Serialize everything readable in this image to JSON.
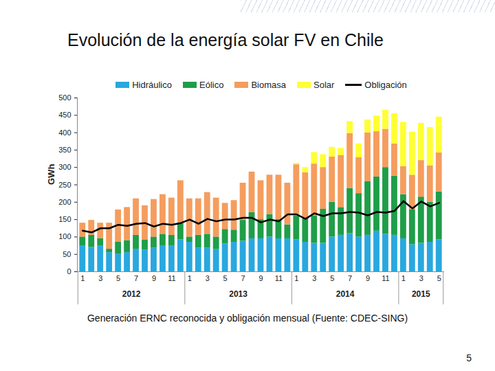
{
  "chart_data": {
    "type": "bar",
    "title": "Evolución de la energía solar FV en Chile",
    "y_label": "GWh",
    "caption": "Generación ERNC reconocida y obligación mensual (Fuente: CDEC-SING)",
    "categories": [
      "1",
      null,
      "3",
      null,
      "5",
      null,
      "7",
      null,
      "9",
      null,
      "11",
      null,
      "1",
      null,
      "3",
      null,
      "5",
      null,
      "7",
      null,
      "9",
      null,
      "11",
      null,
      "1",
      null,
      "3",
      null,
      "5",
      null,
      "7",
      null,
      "9",
      null,
      "11",
      null,
      "1",
      null,
      "3",
      null,
      "5"
    ],
    "year_groups": [
      {
        "label": "2012",
        "months": 12
      },
      {
        "label": "2013",
        "months": 12
      },
      {
        "label": "2014",
        "months": 12
      },
      {
        "label": "2015",
        "months": 5
      }
    ],
    "series": [
      {
        "name": "Hidráulico",
        "type": "bar",
        "color": "#29a8df",
        "values": [
          75,
          70,
          75,
          55,
          50,
          55,
          65,
          62,
          68,
          75,
          75,
          92,
          85,
          68,
          68,
          65,
          80,
          85,
          88,
          95,
          95,
          100,
          95,
          95,
          92,
          85,
          82,
          82,
          100,
          105,
          110,
          100,
          105,
          117,
          108,
          105,
          95,
          78,
          82,
          85,
          92
        ]
      },
      {
        "name": "Eólico",
        "type": "bar",
        "color": "#1f9e48",
        "values": [
          25,
          35,
          20,
          10,
          35,
          35,
          40,
          30,
          32,
          33,
          30,
          48,
          15,
          37,
          40,
          35,
          42,
          35,
          60,
          75,
          55,
          65,
          55,
          40,
          68,
          70,
          78,
          98,
          100,
          80,
          130,
          125,
          155,
          156,
          192,
          170,
          127,
          100,
          133,
          115,
          138
        ]
      },
      {
        "name": "Biomasa",
        "type": "bar",
        "color": "#f59d5e",
        "values": [
          40,
          43,
          45,
          75,
          93,
          95,
          105,
          98,
          108,
          114,
          107,
          122,
          110,
          105,
          120,
          112,
          75,
          85,
          107,
          117,
          112,
          113,
          128,
          120,
          148,
          130,
          150,
          120,
          130,
          150,
          158,
          103,
          140,
          130,
          110,
          93,
          81,
          100,
          105,
          105,
          112
        ]
      },
      {
        "name": "Solar",
        "type": "bar",
        "color": "#ffff33",
        "values": [
          0,
          0,
          0,
          0,
          0,
          0,
          0,
          0,
          0,
          0,
          0,
          0,
          0,
          0,
          0,
          0,
          0,
          0,
          0,
          0,
          0,
          0,
          0,
          0,
          4,
          15,
          33,
          37,
          28,
          20,
          34,
          40,
          37,
          45,
          55,
          87,
          127,
          124,
          107,
          110,
          103
        ]
      },
      {
        "name": "Obligación",
        "type": "line",
        "color": "#000000",
        "values": [
          118,
          113,
          125,
          125,
          135,
          132,
          138,
          140,
          130,
          138,
          135,
          140,
          150,
          138,
          152,
          145,
          150,
          150,
          155,
          155,
          142,
          150,
          145,
          165,
          165,
          152,
          168,
          160,
          168,
          168,
          172,
          170,
          162,
          172,
          170,
          175,
          203,
          182,
          202,
          188,
          198
        ]
      }
    ],
    "ylim": [
      0,
      500
    ],
    "yticks": [
      0,
      50,
      100,
      150,
      200,
      250,
      300,
      350,
      400,
      450,
      500
    ],
    "stacked": true,
    "grid": false,
    "legend": "top"
  },
  "slide": {
    "page_number": "5"
  }
}
